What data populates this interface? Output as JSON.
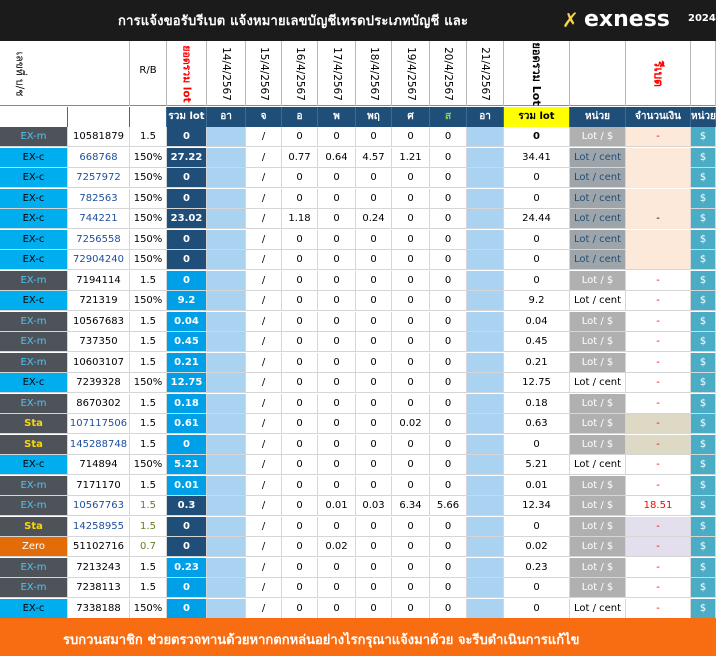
{
  "header": {
    "title": "การแจ้งขอรับรีเบต  แจ้งหมายเลขบัญชีเทรดประเภทบัญชี และ",
    "logo_mark": "✗",
    "logo_text": "exness",
    "logo_year": "2024"
  },
  "columns": {
    "account": "เลขที่ บ/ช",
    "rb": "R/B",
    "total_lot_v": "ยอดรวม lot",
    "dates": [
      "14/4/2567",
      "15/4/2567",
      "16/4/2567",
      "17/4/2567",
      "18/4/2567",
      "19/4/2567",
      "20/4/2567",
      "21/4/2567"
    ],
    "grand_total": "ยอดรวม Lot",
    "rebate": "รีเบต"
  },
  "subheader": {
    "total_lot": "รวม lot",
    "days": [
      "อา",
      "จ",
      "อ",
      "พ",
      "พฤ",
      "ศ",
      "ส",
      "อา"
    ],
    "sum_lot": "รวม lot",
    "unit": "หน่วย",
    "amount": "จำนวนเงิน",
    "unit2": "หน่วย"
  },
  "rows": [
    {
      "type": "EX-m",
      "account": "10581879",
      "rb": "1.5",
      "total": "0",
      "mon": "/",
      "tue": "0",
      "wed": "0",
      "thu": "0",
      "fri": "0",
      "sat": "0",
      "sum": "0",
      "unit": "Lot / $",
      "amount": "-",
      "cur": "$"
    },
    {
      "type": "EX-c",
      "account": "668768",
      "rb": "150%",
      "total": "27.22",
      "mon": "/",
      "tue": "0.77",
      "wed": "0.64",
      "thu": "4.57",
      "fri": "1.21",
      "sat": "0",
      "sum": "34.41",
      "unit": "Lot / cent",
      "amount": "",
      "cur": "$"
    },
    {
      "type": "EX-c",
      "account": "7257972",
      "rb": "150%",
      "total": "0",
      "mon": "/",
      "tue": "0",
      "wed": "0",
      "thu": "0",
      "fri": "0",
      "sat": "0",
      "sum": "0",
      "unit": "Lot / cent",
      "amount": "",
      "cur": "$"
    },
    {
      "type": "EX-c",
      "account": "782563",
      "rb": "150%",
      "total": "0",
      "mon": "/",
      "tue": "0",
      "wed": "0",
      "thu": "0",
      "fri": "0",
      "sat": "0",
      "sum": "0",
      "unit": "Lot / cent",
      "amount": "",
      "cur": "$"
    },
    {
      "type": "EX-c",
      "account": "744221",
      "rb": "150%",
      "total": "23.02",
      "mon": "/",
      "tue": "1.18",
      "wed": "0",
      "thu": "0.24",
      "fri": "0",
      "sat": "0",
      "sum": "24.44",
      "unit": "Lot / cent",
      "amount": "-",
      "cur": "$"
    },
    {
      "type": "EX-c",
      "account": "7256558",
      "rb": "150%",
      "total": "0",
      "mon": "/",
      "tue": "0",
      "wed": "0",
      "thu": "0",
      "fri": "0",
      "sat": "0",
      "sum": "0",
      "unit": "Lot / cent",
      "amount": "",
      "cur": "$"
    },
    {
      "type": "EX-c",
      "account": "72904240",
      "rb": "150%",
      "total": "0",
      "mon": "/",
      "tue": "0",
      "wed": "0",
      "thu": "0",
      "fri": "0",
      "sat": "0",
      "sum": "0",
      "unit": "Lot / cent",
      "amount": "",
      "cur": "$"
    },
    {
      "type": "EX-m",
      "account": "7194114",
      "rb": "1.5",
      "total": "0",
      "mon": "/",
      "tue": "0",
      "wed": "0",
      "thu": "0",
      "fri": "0",
      "sat": "0",
      "sum": "0",
      "unit": "Lot / $",
      "amount": "-",
      "cur": "$"
    },
    {
      "type": "EX-c",
      "account": "721319",
      "rb": "150%",
      "total": "9.2",
      "mon": "/",
      "tue": "0",
      "wed": "0",
      "thu": "0",
      "fri": "0",
      "sat": "0",
      "sum": "9.2",
      "unit": "Lot / cent",
      "amount": "-",
      "cur": "$"
    },
    {
      "type": "EX-m",
      "account": "10567683",
      "rb": "1.5",
      "total": "0.04",
      "mon": "/",
      "tue": "0",
      "wed": "0",
      "thu": "0",
      "fri": "0",
      "sat": "0",
      "sum": "0.04",
      "unit": "Lot / $",
      "amount": "-",
      "cur": "$"
    },
    {
      "type": "EX-m",
      "account": "737350",
      "rb": "1.5",
      "total": "0.45",
      "mon": "/",
      "tue": "0",
      "wed": "0",
      "thu": "0",
      "fri": "0",
      "sat": "0",
      "sum": "0.45",
      "unit": "Lot / $",
      "amount": "-",
      "cur": "$"
    },
    {
      "type": "EX-m",
      "account": "10603107",
      "rb": "1.5",
      "total": "0.21",
      "mon": "/",
      "tue": "0",
      "wed": "0",
      "thu": "0",
      "fri": "0",
      "sat": "0",
      "sum": "0.21",
      "unit": "Lot / $",
      "amount": "-",
      "cur": "$"
    },
    {
      "type": "EX-c",
      "account": "7239328",
      "rb": "150%",
      "total": "12.75",
      "mon": "/",
      "tue": "0",
      "wed": "0",
      "thu": "0",
      "fri": "0",
      "sat": "0",
      "sum": "12.75",
      "unit": "Lot / cent",
      "amount": "-",
      "cur": "$"
    },
    {
      "type": "EX-m",
      "account": "8670302",
      "rb": "1.5",
      "total": "0.18",
      "mon": "/",
      "tue": "0",
      "wed": "0",
      "thu": "0",
      "fri": "0",
      "sat": "0",
      "sum": "0.18",
      "unit": "Lot / $",
      "amount": "-",
      "cur": "$"
    },
    {
      "type": "Sta",
      "account": "107117506",
      "rb": "1.5",
      "total": "0.61",
      "mon": "/",
      "tue": "0",
      "wed": "0",
      "thu": "0",
      "fri": "0.02",
      "sat": "0",
      "sum": "0.63",
      "unit": "Lot / $",
      "amount": "-",
      "cur": "$"
    },
    {
      "type": "Sta",
      "account": "145288748",
      "rb": "1.5",
      "total": "0",
      "mon": "/",
      "tue": "0",
      "wed": "0",
      "thu": "0",
      "fri": "0",
      "sat": "0",
      "sum": "0",
      "unit": "Lot / $",
      "amount": "-",
      "cur": "$"
    },
    {
      "type": "EX-c",
      "account": "714894",
      "rb": "150%",
      "total": "5.21",
      "mon": "/",
      "tue": "0",
      "wed": "0",
      "thu": "0",
      "fri": "0",
      "sat": "0",
      "sum": "5.21",
      "unit": "Lot / cent",
      "amount": "-",
      "cur": "$"
    },
    {
      "type": "EX-m",
      "account": "7171170",
      "rb": "1.5",
      "total": "0.01",
      "mon": "/",
      "tue": "0",
      "wed": "0",
      "thu": "0",
      "fri": "0",
      "sat": "0",
      "sum": "0.01",
      "unit": "Lot / $",
      "amount": "-",
      "cur": "$"
    },
    {
      "type": "EX-m",
      "account": "10567763",
      "rb": "1.5",
      "total": "0.3",
      "mon": "/",
      "tue": "0",
      "wed": "0.01",
      "thu": "0.03",
      "fri": "6.34",
      "sat": "5.66",
      "sum": "12.34",
      "unit": "Lot / $",
      "amount": "18.51",
      "cur": "$"
    },
    {
      "type": "Sta",
      "account": "14258955",
      "rb": "1.5",
      "total": "0",
      "mon": "/",
      "tue": "0",
      "wed": "0",
      "thu": "0",
      "fri": "0",
      "sat": "0",
      "sum": "0",
      "unit": "Lot / $",
      "amount": "-",
      "cur": "$"
    },
    {
      "type": "Zero",
      "account": "51102716",
      "rb": "0.7",
      "total": "0",
      "mon": "/",
      "tue": "0",
      "wed": "0.02",
      "thu": "0",
      "fri": "0",
      "sat": "0",
      "sum": "0.02",
      "unit": "Lot / $",
      "amount": "-",
      "cur": "$"
    },
    {
      "type": "EX-m",
      "account": "7213243",
      "rb": "1.5",
      "total": "0.23",
      "mon": "/",
      "tue": "0",
      "wed": "0",
      "thu": "0",
      "fri": "0",
      "sat": "0",
      "sum": "0.23",
      "unit": "Lot / $",
      "amount": "-",
      "cur": "$"
    },
    {
      "type": "EX-m",
      "account": "7238113",
      "rb": "1.5",
      "total": "0",
      "mon": "/",
      "tue": "0",
      "wed": "0",
      "thu": "0",
      "fri": "0",
      "sat": "0",
      "sum": "0",
      "unit": "Lot / $",
      "amount": "-",
      "cur": "$"
    },
    {
      "type": "EX-c",
      "account": "7338188",
      "rb": "150%",
      "total": "0",
      "mon": "/",
      "tue": "0",
      "wed": "0",
      "thu": "0",
      "fri": "0",
      "sat": "0",
      "sum": "0",
      "unit": "Lot / cent",
      "amount": "-",
      "cur": "$"
    }
  ],
  "footer": {
    "message": "รบกวนสมาชิก ช่วยตรวจทานด้วยหากตกหล่นอย่างไรกรุณาแจ้งมาด้วย จะรีบดำเนินการแก้ไข"
  },
  "colors": {
    "title_bg": "#1b1b1b",
    "banner_bg": "#f86c12",
    "ex_c": "#00aeef",
    "ex_m": "#4d5358",
    "sta": "#4d5358",
    "zero": "#e36c09",
    "total_dark": "#1f4e78",
    "total_light": "#00a0e9",
    "sum_header": "#ffff00",
    "rebate_red": "#ff0000",
    "cur_col": "#4bacc6"
  }
}
